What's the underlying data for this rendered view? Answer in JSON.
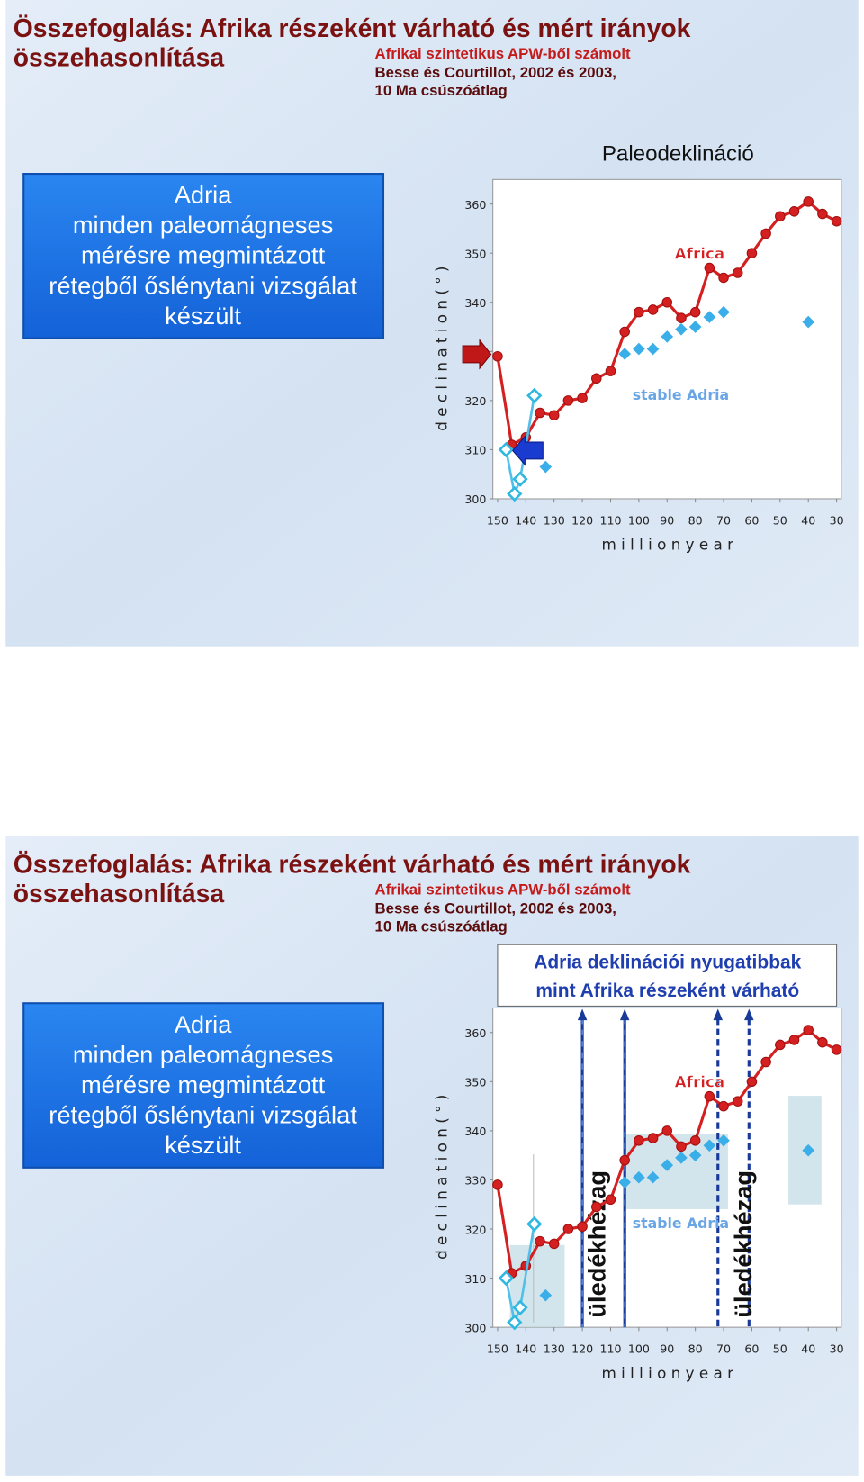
{
  "slides": [
    {
      "title_line1": "Összefoglalás: Afrika részeként várható és mért irányok",
      "title_line2": "összehasonlítása",
      "source_line1": "Afrikai szintetikus APW-ből számolt",
      "source_line2": "Besse és Courtillot, 2002 és 2003,",
      "source_line3": "10 Ma csúszóátlag",
      "box_lines": [
        "Adria",
        "minden paleomágneses",
        "mérésre megmintázott",
        "rétegből őslénytani vizsgálat",
        "készült"
      ]
    },
    {
      "title_line1": "Összefoglalás: Afrika részeként várható és mért irányok",
      "title_line2": "összehasonlítása",
      "source_line1": "Afrikai szintetikus APW-ből számolt",
      "source_line2": "Besse és Courtillot, 2002 és 2003,",
      "source_line3": "10 Ma csúszóátlag",
      "box_lines": [
        "Adria",
        "minden paleomágneses",
        "mérésre megmintázott",
        "rétegből őslénytani vizsgálat",
        "készült"
      ]
    }
  ],
  "chart_data": [
    {
      "type": "line",
      "title": "Paleodeklináció",
      "y_label": "d e c l i n a t i o n ( ° )",
      "x_label": "m i l l i o n  y e a r",
      "xlim": [
        150,
        30
      ],
      "xticks": [
        150,
        140,
        130,
        120,
        110,
        100,
        90,
        80,
        70,
        60,
        50,
        40,
        30
      ],
      "ylim": [
        300,
        365
      ],
      "yticks": [
        300,
        310,
        320,
        330,
        340,
        350,
        360
      ],
      "series": [
        {
          "name": "Africa",
          "color": "#d42020",
          "mark": "circle",
          "line": true,
          "x": [
            150,
            145,
            140,
            135,
            130,
            125,
            120,
            115,
            110,
            105,
            100,
            95,
            90,
            85,
            80,
            75,
            70,
            65,
            60,
            55,
            50,
            45,
            40,
            35,
            30
          ],
          "values": [
            329,
            311,
            312.5,
            317.5,
            317,
            320,
            320.5,
            324.5,
            326,
            334,
            338,
            338.5,
            340,
            336.8,
            338,
            347,
            345,
            346,
            350,
            354,
            357.5,
            358.5,
            360.5,
            358,
            356.5
          ]
        },
        {
          "name": "stable Adria",
          "color": "#3aaee8",
          "mark": "diamond",
          "line": false,
          "x": [
            133,
            105,
            100,
            95,
            90,
            85,
            80,
            75,
            70,
            40
          ],
          "values": [
            306.5,
            329.5,
            330.5,
            330.5,
            333,
            334.5,
            335,
            337,
            338,
            336
          ]
        },
        {
          "color": "#30b8e0",
          "mark": "open-diamond",
          "line": true,
          "x": [
            147,
            144,
            142,
            137
          ],
          "values": [
            310,
            301,
            304,
            321
          ]
        }
      ],
      "annotations": [
        "Africa",
        "stable Adria"
      ]
    },
    {
      "type": "line",
      "title_lines": [
        "Adria deklinációi nyugatibbak",
        "mint Afrika részeként várható"
      ],
      "y_label": "d e c l i n a t i o n ( ° )",
      "x_label": "m i l l i o n  y e a r",
      "xlim": [
        150,
        30
      ],
      "xticks": [
        150,
        140,
        130,
        120,
        110,
        100,
        90,
        80,
        70,
        60,
        50,
        40,
        30
      ],
      "ylim": [
        300,
        365
      ],
      "yticks": [
        300,
        310,
        320,
        330,
        340,
        350,
        360
      ],
      "series": [
        {
          "name": "Africa",
          "color": "#d42020",
          "mark": "circle",
          "line": true,
          "x": [
            150,
            145,
            140,
            135,
            130,
            125,
            120,
            115,
            110,
            105,
            100,
            95,
            90,
            85,
            80,
            75,
            70,
            65,
            60,
            55,
            50,
            45,
            40,
            35,
            30
          ],
          "values": [
            329,
            311,
            312.5,
            317.5,
            317,
            320,
            320.5,
            324.5,
            326,
            334,
            338,
            338.5,
            340,
            336.8,
            338,
            347,
            345,
            346,
            350,
            354,
            357.5,
            358.5,
            360.5,
            358,
            356.5
          ]
        },
        {
          "name": "stable Adria",
          "color": "#3aaee8",
          "mark": "diamond",
          "line": false,
          "x": [
            133,
            105,
            100,
            95,
            90,
            85,
            80,
            75,
            70,
            40
          ],
          "values": [
            306.5,
            329.5,
            330.5,
            330.5,
            333,
            334.5,
            335,
            337,
            338,
            336
          ]
        },
        {
          "color": "#30b8e0",
          "mark": "open-diamond",
          "line": true,
          "x": [
            147,
            144,
            142,
            137
          ],
          "values": [
            310,
            301,
            304,
            321
          ]
        }
      ],
      "annotations": [
        "Africa",
        "stable Adria"
      ],
      "vertical_lines": [
        {
          "x": 120,
          "style": "solid"
        },
        {
          "x": 105,
          "style": "solid"
        },
        {
          "x": 72,
          "style": "dashed"
        },
        {
          "x": 61,
          "style": "dashed"
        }
      ],
      "gap_labels": [
        "üledékhézag",
        "üledékhézag"
      ]
    }
  ]
}
